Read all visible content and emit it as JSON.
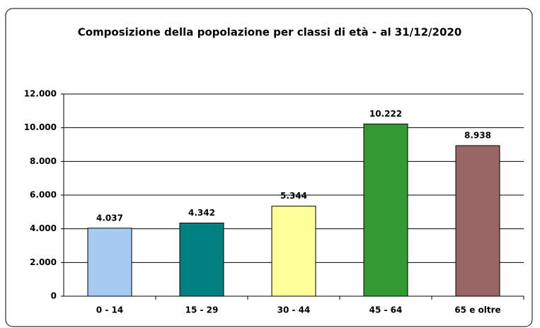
{
  "chart_data": {
    "type": "bar",
    "title": "Composizione della popolazione per classi di età - al 31/12/2020",
    "categories": [
      "0 - 14",
      "15 - 29",
      "30 - 44",
      "45 - 64",
      "65 e oltre"
    ],
    "values": [
      4037,
      4342,
      5344,
      10222,
      8938
    ],
    "value_labels": [
      "4.037",
      "4.342",
      "5.344",
      "10.222",
      "8.938"
    ],
    "colors": [
      "#a6caf0",
      "#008080",
      "#ffff99",
      "#339933",
      "#996666"
    ],
    "ylim": [
      0,
      12000
    ],
    "yticks": [
      0,
      {
        "value": 2000,
        "label": "2.000"
      },
      {
        "value": 4000,
        "label": "4.000"
      },
      {
        "value": 6000,
        "label": "6.000"
      },
      {
        "value": 8000,
        "label": "8.000"
      },
      {
        "value": 10000,
        "label": "10.000"
      },
      {
        "value": 12000,
        "label": "12.000"
      }
    ],
    "grid": true
  }
}
